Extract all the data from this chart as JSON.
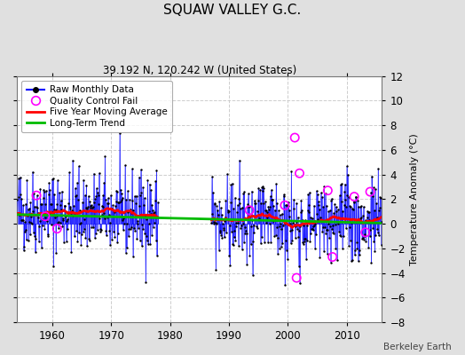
{
  "title": "SQUAW VALLEY G.C.",
  "subtitle": "39.192 N, 120.242 W (United States)",
  "ylabel": "Temperature Anomaly (°C)",
  "attribution": "Berkeley Earth",
  "ylim": [
    -8,
    12
  ],
  "yticks": [
    -8,
    -6,
    -4,
    -2,
    0,
    2,
    4,
    6,
    8,
    10,
    12
  ],
  "xlim": [
    1954,
    2016
  ],
  "xticks": [
    1960,
    1970,
    1980,
    1990,
    2000,
    2010
  ],
  "bg_color": "#e0e0e0",
  "plot_bg_color": "#ffffff",
  "grid_color": "#c8c8c8",
  "line_color_raw": "#0000ff",
  "line_color_moving_avg": "#ff0000",
  "line_color_trend": "#00bb00",
  "marker_color": "#000000",
  "qc_fail_color": "#ff00ff",
  "legend_labels": [
    "Raw Monthly Data",
    "Quality Control Fail",
    "Five Year Moving Average",
    "Long-Term Trend"
  ],
  "seg1_start": 1954,
  "seg1_end": 1977,
  "seg2_start": 1987,
  "seg2_end": 2015
}
